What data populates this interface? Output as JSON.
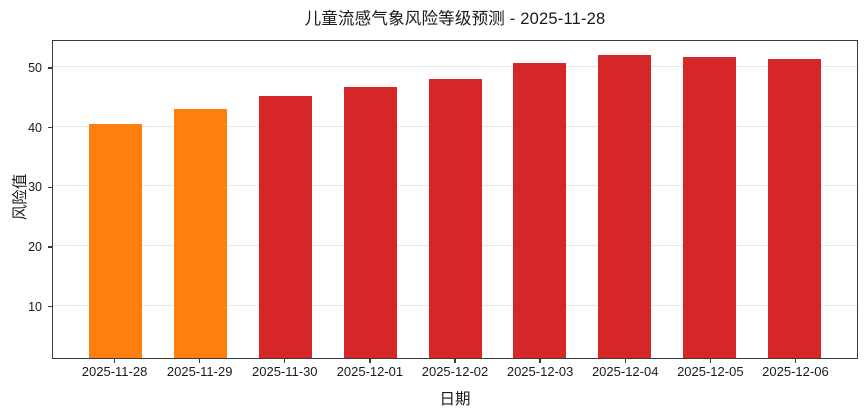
{
  "chart_data": {
    "type": "bar",
    "title": "儿童流感气象风险等级预测 - 2025-11-28",
    "xlabel": "日期",
    "ylabel": "风险值",
    "categories": [
      "2025-11-28",
      "2025-11-29",
      "2025-11-30",
      "2025-12-01",
      "2025-12-02",
      "2025-12-03",
      "2025-12-04",
      "2025-12-05",
      "2025-12-06"
    ],
    "values": [
      40.5,
      43.0,
      45.1,
      46.7,
      48.0,
      50.7,
      52.0,
      51.7,
      51.3
    ],
    "bar_colors": [
      "#FF7F0E",
      "#FF7F0E",
      "#D62728",
      "#D62728",
      "#D62728",
      "#D62728",
      "#D62728",
      "#D62728",
      "#D62728"
    ],
    "ylim": [
      1.2,
      54.7
    ],
    "yticks": [
      10,
      20,
      30,
      40,
      50
    ],
    "grid": "horizontal-only",
    "legend": "none",
    "colors": {
      "orange_bar": "#FF7F0E",
      "red_bar": "#D62728",
      "grid_line": "#E7E7E7",
      "spine": "#3A3A3A",
      "text": "#1A1A1A",
      "background": "#FFFFFF"
    }
  }
}
